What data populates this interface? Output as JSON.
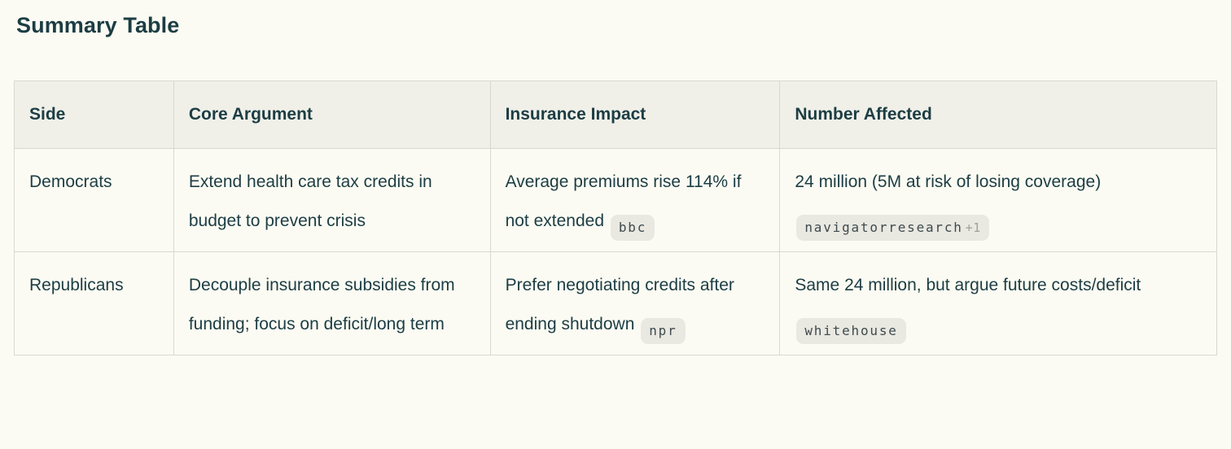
{
  "title": "Summary Table",
  "colors": {
    "page_background": "#FBFBF3",
    "header_background": "#F0F0E9",
    "border": "#D8D7D0",
    "text": "#1C3D43",
    "pill_background": "#E9E8E1",
    "pill_text": "#3E4B4E",
    "pill_extra_text": "#9FA098"
  },
  "table": {
    "columns": [
      "Side",
      "Core Argument",
      "Insurance Impact",
      "Number Affected"
    ],
    "rows": [
      {
        "cells": [
          {
            "text": "Democrats",
            "citations": []
          },
          {
            "text": "Extend health care tax credits in budget to prevent crisis",
            "citations": []
          },
          {
            "text": "Average premiums rise 114% if not extended",
            "citations": [
              {
                "label": "bbc",
                "extra": ""
              }
            ]
          },
          {
            "text": "24 million (5M at risk of losing coverage)",
            "citations": [
              {
                "label": "navigatorresearch",
                "extra": "+1"
              }
            ]
          }
        ]
      },
      {
        "cells": [
          {
            "text": "Republicans",
            "citations": []
          },
          {
            "text": "Decouple insurance subsidies from funding; focus on deficit/long term",
            "citations": []
          },
          {
            "text": "Prefer negotiating credits after ending shutdown",
            "citations": [
              {
                "label": "npr",
                "extra": ""
              }
            ]
          },
          {
            "text": "Same 24 million, but argue future costs/deficit",
            "citations": [
              {
                "label": "whitehouse",
                "extra": ""
              }
            ]
          }
        ]
      }
    ]
  }
}
